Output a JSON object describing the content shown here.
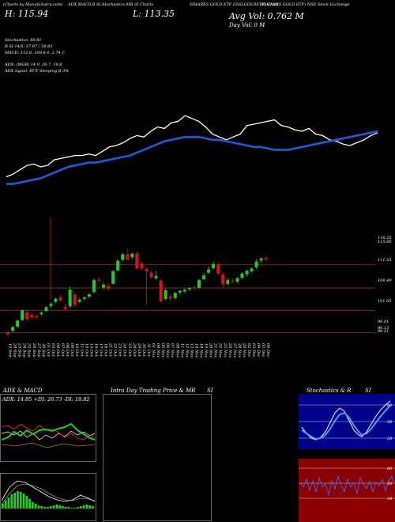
{
  "header": {
    "line1_left": "(Charts by MunafaSutra.com)",
    "line1_mid": "ADX,MACD,B SI,Stochastics,MR SI Charts",
    "line1_right": "ISHARES GOLD ETF (ISSLGOLDETF) Chart",
    "line1_far": "(ISHARES GOLD ETF) NSE Stock Exchange",
    "h_label": "H: 115.94",
    "l_label": "L: 113.35",
    "avg_vol": "Avg Vol: 0.762 M",
    "day_vol": "Day Vol: 0  M",
    "sto_line": "Stochastics: 89.81",
    "rsi_line": "R             SI 14/5: 57.97 / 58.83",
    "macd_line": "MACD: 112.6, 109.8             6, 2.74  C",
    "adx_line": "ADX:                     (MGB) 14.9, 26.7, 19.8",
    "adx_signal": "ADX  signal:                    BUY Sleeping B 3%"
  },
  "price_axis": [
    "116.25",
    "115.88",
    "111.55",
    "106.49",
    "101.65",
    "96.81",
    "96.13",
    "96.51"
  ],
  "dates": [
    "19 Sep",
    "20 Sep",
    "23 Sep",
    "24 Sep",
    "25 Sep",
    "26 Sep",
    "27 Sep",
    "30 Sep",
    "01 Oct",
    "03 Oct",
    "04 Oct",
    "07 Oct",
    "08 Oct",
    "09 Oct",
    "10 Oct",
    "11 Oct",
    "14 Oct",
    "15 Oct",
    "16 Oct",
    "17 Oct",
    "18 Oct",
    "21 Oct",
    "22 Oct",
    "23 Oct",
    "24 Oct",
    "25 Oct",
    "28 Oct",
    "29 Oct",
    "30 Oct",
    "31 Oct",
    "01 Nov",
    "04 Nov",
    "05 Nov",
    "06 Nov",
    "07 Nov",
    "08 Nov",
    "11 Nov",
    "12 Nov",
    "13 Nov",
    "14 Nov",
    "18 Nov",
    "19 Nov",
    "20 Nov",
    "21 Nov",
    "22 Nov",
    "25 Nov",
    "26 Nov",
    "27 Nov",
    "28 Nov",
    "29 Nov",
    "02 Dec",
    "03 Dec",
    "04 Dec",
    "05 Dec",
    "06 Dec"
  ],
  "panels": {
    "adx_title": "ADX  & MACD",
    "adx_values": "ADX: 14.85  +DI: 26.73  -DI: 19.82",
    "intra_title": "Intra  Day Trading Price  & MR",
    "intra_si": "SI",
    "sto_title": "Stochastics & R",
    "sto_si": "SI",
    "sto_axis": [
      "80",
      "50",
      "20"
    ],
    "rsi_axis": [
      "66",
      "50",
      "34"
    ]
  },
  "colors": {
    "up": "#22cc22",
    "down": "#dd1111",
    "ema": "#1e5bd8",
    "price_line": "#ffffff",
    "grid": "#cc4444",
    "sto_bg": "#00008b",
    "rsi_bg": "#8b0000"
  },
  "chart_data": {
    "type": "candlestick",
    "title": "ISHARES GOLD ETF (ISSLGOLDETF)",
    "ylim": [
      95.5,
      117.5
    ],
    "gridlines": [
      111.55,
      106.49,
      101.65,
      96.81
    ],
    "candles": [
      {
        "o": 96.9,
        "h": 97.1,
        "l": 95.9,
        "c": 96.4
      },
      {
        "o": 97.2,
        "h": 98.3,
        "l": 96.8,
        "c": 98.0
      },
      {
        "o": 98.1,
        "h": 99.6,
        "l": 97.8,
        "c": 99.4
      },
      {
        "o": 99.5,
        "h": 101.8,
        "l": 99.3,
        "c": 101.6
      },
      {
        "o": 101.2,
        "h": 101.6,
        "l": 99.3,
        "c": 99.7
      },
      {
        "o": 100.6,
        "h": 101.0,
        "l": 99.6,
        "c": 100.1
      },
      {
        "o": 100.4,
        "h": 100.7,
        "l": 99.7,
        "c": 100.1
      },
      {
        "o": 100.8,
        "h": 101.4,
        "l": 100.4,
        "c": 101.1
      },
      {
        "o": 101.5,
        "h": 102.6,
        "l": 101.3,
        "c": 102.3
      },
      {
        "o": 102.6,
        "h": 103.4,
        "l": 102.2,
        "c": 103.0
      },
      {
        "o": 103.5,
        "h": 104.4,
        "l": 103.2,
        "c": 104.1
      },
      {
        "o": 104.4,
        "h": 104.9,
        "l": 103.5,
        "c": 103.8
      },
      {
        "o": 102.4,
        "h": 103.2,
        "l": 101.6,
        "c": 101.9
      },
      {
        "o": 102.5,
        "h": 106.8,
        "l": 102.2,
        "c": 106.1
      },
      {
        "o": 105.0,
        "h": 105.4,
        "l": 102.4,
        "c": 102.8
      },
      {
        "o": 103.5,
        "h": 104.4,
        "l": 103.2,
        "c": 103.9
      },
      {
        "o": 104.1,
        "h": 104.7,
        "l": 103.8,
        "c": 104.4
      },
      {
        "o": 104.6,
        "h": 105.4,
        "l": 104.3,
        "c": 105.1
      },
      {
        "o": 105.6,
        "h": 108.6,
        "l": 105.3,
        "c": 108.2
      },
      {
        "o": 108.3,
        "h": 108.8,
        "l": 107.8,
        "c": 108.1
      },
      {
        "o": 106.6,
        "h": 107.7,
        "l": 106.2,
        "c": 107.2
      },
      {
        "o": 106.9,
        "h": 107.6,
        "l": 106.0,
        "c": 106.3
      },
      {
        "o": 107.4,
        "h": 110.4,
        "l": 107.2,
        "c": 110.1
      },
      {
        "o": 110.3,
        "h": 112.7,
        "l": 110.1,
        "c": 112.4
      },
      {
        "o": 112.6,
        "h": 114.2,
        "l": 112.3,
        "c": 113.8
      },
      {
        "o": 113.8,
        "h": 115.1,
        "l": 112.4,
        "c": 112.7
      },
      {
        "o": 113.2,
        "h": 114.2,
        "l": 112.7,
        "c": 113.9
      },
      {
        "o": 114.0,
        "h": 114.4,
        "l": 110.4,
        "c": 110.7
      },
      {
        "o": 111.8,
        "h": 112.3,
        "l": 110.3,
        "c": 110.7
      },
      {
        "o": 110.6,
        "h": 111.0,
        "l": 102.8,
        "c": 110.1
      },
      {
        "o": 109.8,
        "h": 110.2,
        "l": 108.5,
        "c": 108.8
      },
      {
        "o": 108.6,
        "h": 110.1,
        "l": 108.2,
        "c": 109.1
      },
      {
        "o": 108.1,
        "h": 108.5,
        "l": 103.3,
        "c": 103.6
      },
      {
        "o": 104.1,
        "h": 106.4,
        "l": 103.8,
        "c": 106.0
      },
      {
        "o": 104.6,
        "h": 105.2,
        "l": 103.6,
        "c": 104.2
      },
      {
        "o": 104.3,
        "h": 105.6,
        "l": 104.0,
        "c": 105.4
      },
      {
        "o": 105.5,
        "h": 106.0,
        "l": 104.9,
        "c": 105.9
      },
      {
        "o": 105.7,
        "h": 106.4,
        "l": 105.3,
        "c": 106.1
      },
      {
        "o": 106.2,
        "h": 106.6,
        "l": 105.8,
        "c": 106.5
      },
      {
        "o": 106.6,
        "h": 107.0,
        "l": 106.1,
        "c": 106.4
      },
      {
        "o": 106.5,
        "h": 108.5,
        "l": 106.3,
        "c": 108.2
      },
      {
        "o": 108.4,
        "h": 109.8,
        "l": 108.1,
        "c": 109.2
      },
      {
        "o": 109.8,
        "h": 111.2,
        "l": 109.6,
        "c": 110.5
      },
      {
        "o": 110.8,
        "h": 112.2,
        "l": 110.4,
        "c": 111.7
      },
      {
        "o": 111.6,
        "h": 112.1,
        "l": 109.2,
        "c": 109.6
      },
      {
        "o": 109.4,
        "h": 109.9,
        "l": 106.6,
        "c": 107.3
      },
      {
        "o": 107.4,
        "h": 108.6,
        "l": 107.0,
        "c": 108.2
      },
      {
        "o": 108.0,
        "h": 108.5,
        "l": 107.6,
        "c": 107.9
      },
      {
        "o": 107.9,
        "h": 108.9,
        "l": 107.5,
        "c": 108.6
      },
      {
        "o": 108.7,
        "h": 109.9,
        "l": 108.4,
        "c": 109.6
      },
      {
        "o": 109.5,
        "h": 110.5,
        "l": 109.0,
        "c": 110.2
      },
      {
        "o": 110.1,
        "h": 111.0,
        "l": 109.8,
        "c": 110.7
      },
      {
        "o": 111.0,
        "h": 112.7,
        "l": 110.6,
        "c": 112.2
      },
      {
        "o": 112.5,
        "h": 113.1,
        "l": 112.0,
        "c": 112.9
      },
      {
        "o": 113.0,
        "h": 113.4,
        "l": 112.3,
        "c": 112.7
      }
    ],
    "volume_line": [
      52,
      50,
      47,
      44,
      43,
      45,
      44,
      40,
      39,
      38,
      37,
      37,
      36,
      37,
      34,
      31,
      30,
      28,
      25,
      23,
      24,
      20,
      17,
      18,
      14,
      13,
      9,
      11,
      13,
      17,
      22,
      24,
      26,
      24,
      22,
      16,
      15,
      14,
      13,
      12,
      16,
      17,
      19,
      20,
      18,
      22,
      23,
      26,
      27,
      29,
      30,
      28,
      26,
      23,
      21
    ],
    "ema_line": [
      57,
      57,
      56,
      55,
      54,
      53,
      51,
      49,
      47,
      45,
      44,
      43,
      42,
      42,
      41,
      40,
      39,
      38,
      37,
      35,
      33,
      31,
      29,
      27,
      26,
      25,
      24,
      24,
      24,
      25,
      26,
      26,
      27,
      28,
      29,
      30,
      31,
      31,
      32,
      33,
      33,
      33,
      32,
      31,
      30,
      29,
      28,
      27,
      26,
      25,
      24,
      23,
      22,
      21,
      20
    ]
  }
}
